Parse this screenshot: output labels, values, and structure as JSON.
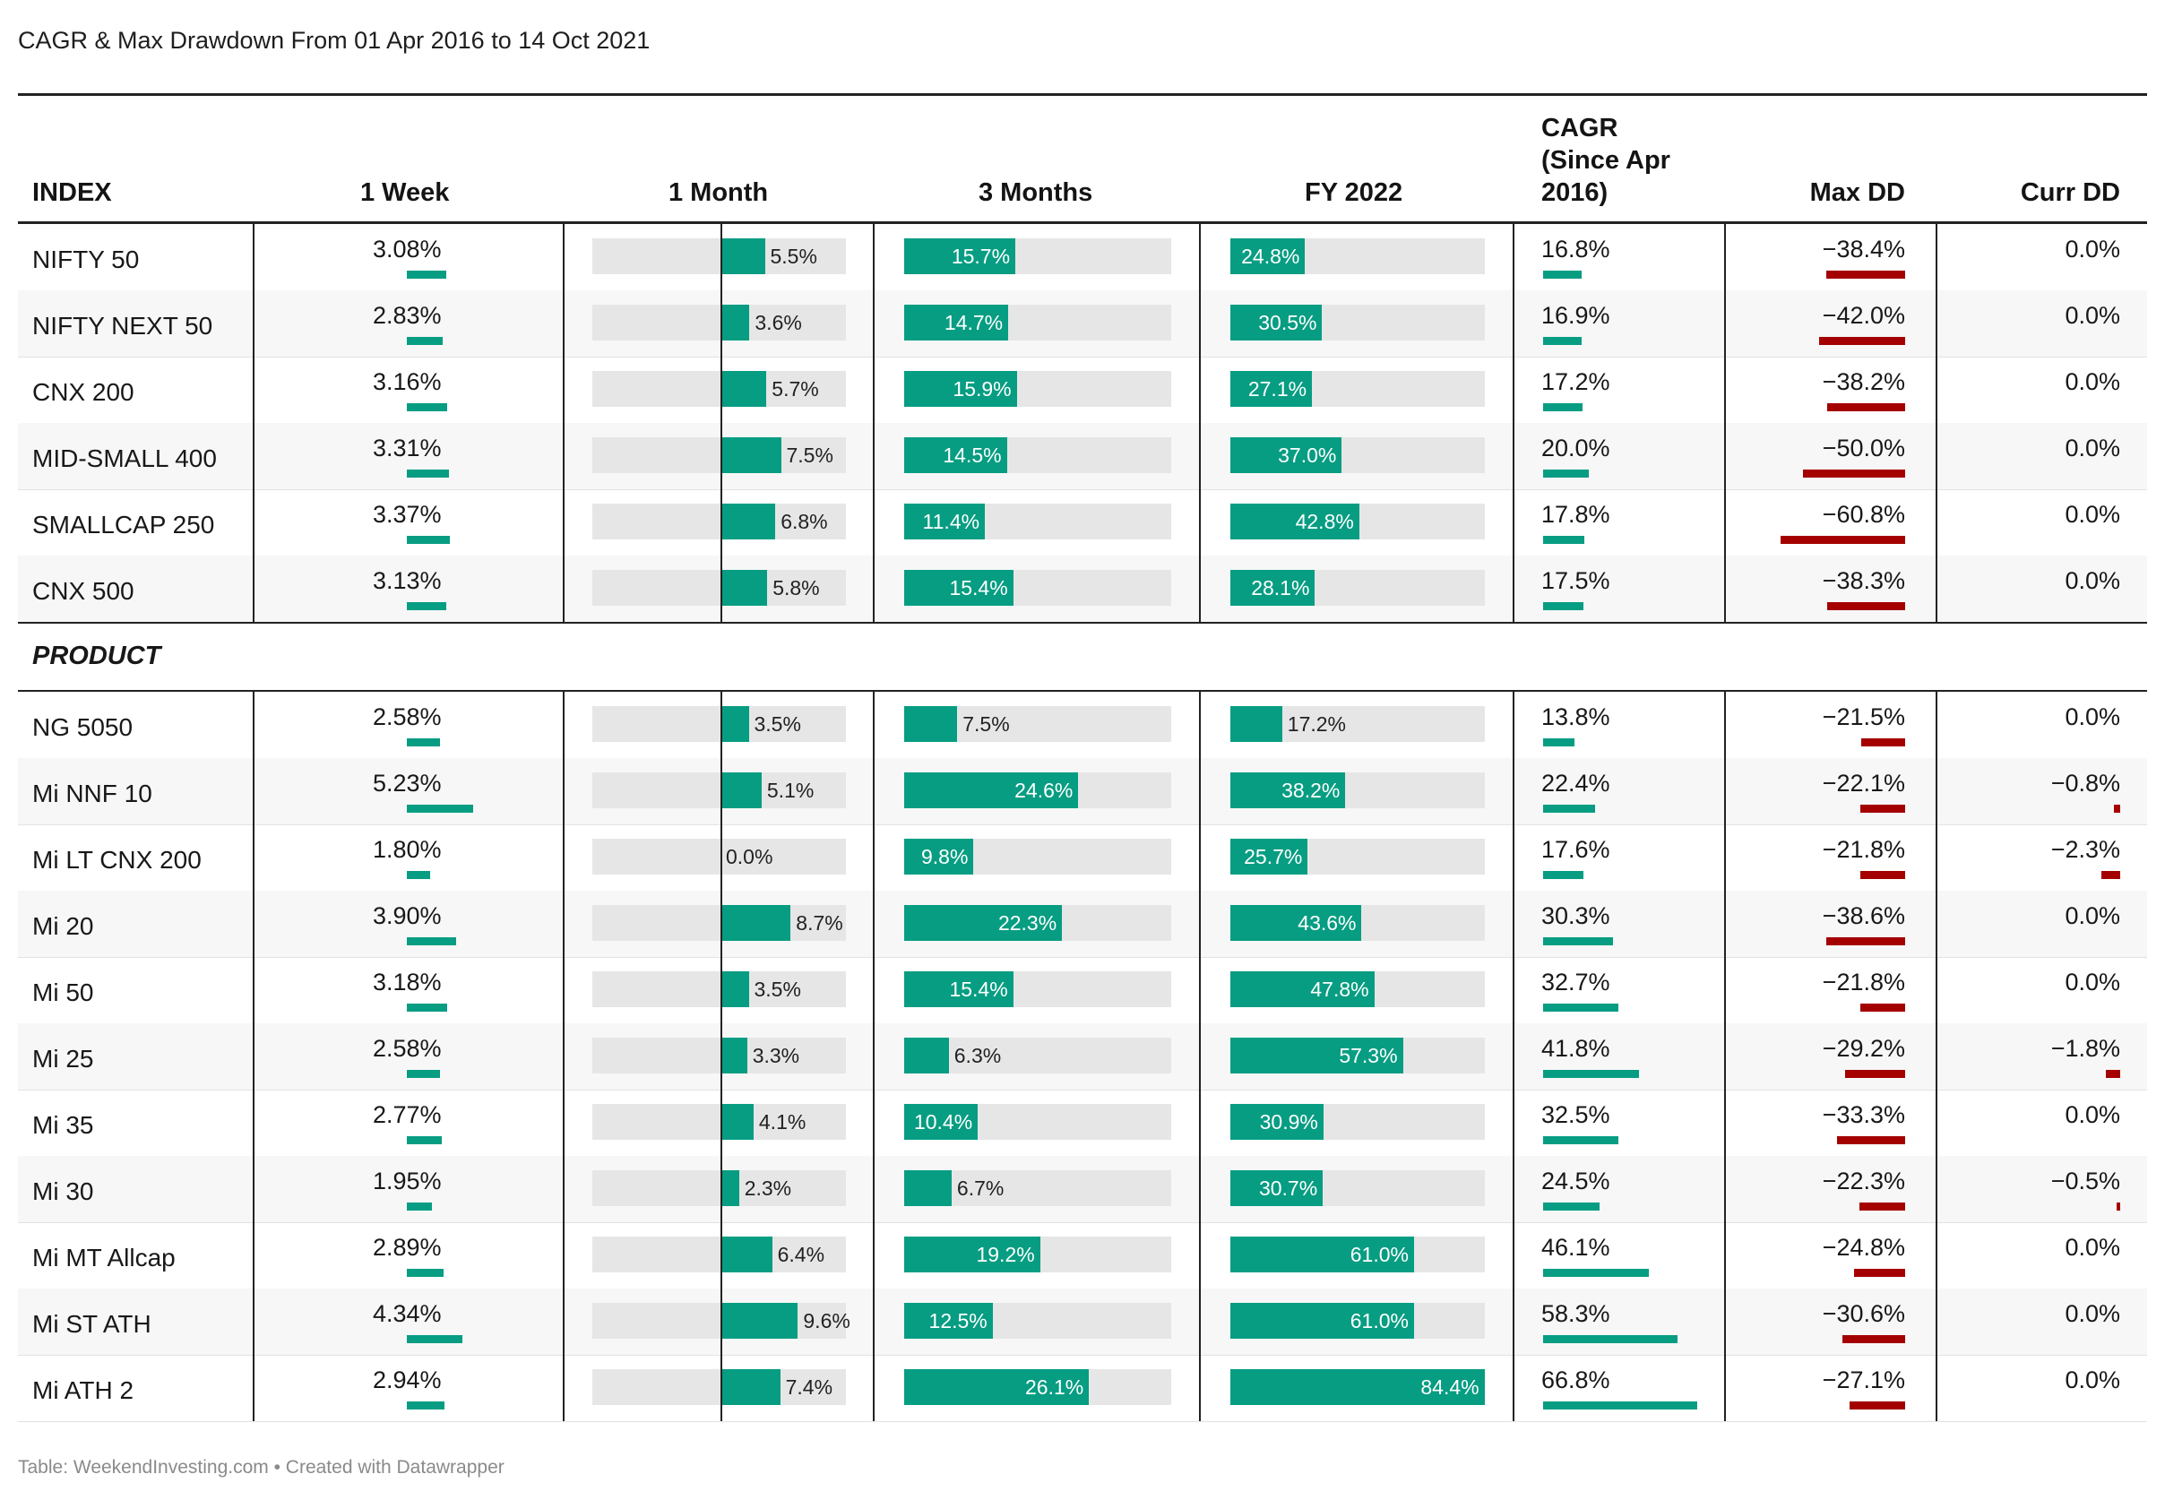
{
  "title": "CAGR & Max Drawdown From 01 Apr 2016 to 14 Oct 2021",
  "footer": "Table: WeekendInvesting.com • Created with Datawrapper",
  "colors": {
    "green": "#079d82",
    "red": "#a40000",
    "track": "#e6e6e6"
  },
  "headers": {
    "index": "INDEX",
    "week": "1 Week",
    "month": "1 Month",
    "months3": "3 Months",
    "fy": "FY 2022",
    "cagr_line1": "CAGR",
    "cagr_line2": "(Since Apr",
    "cagr_line3": "2016)",
    "maxdd": "Max DD",
    "currdd": "Curr DD"
  },
  "section_label": "PRODUCT",
  "chart_data": {
    "type": "table",
    "columns": [
      "INDEX",
      "1 Week",
      "1 Month",
      "3 Months",
      "FY 2022",
      "CAGR (Since Apr 2016)",
      "Max DD",
      "Curr DD"
    ],
    "index_rows": [
      {
        "name": "NIFTY 50",
        "week": "3.08%",
        "week_v": 3.08,
        "month": "5.5%",
        "month_v": 5.5,
        "m3": "15.7%",
        "m3_v": 15.7,
        "fy": "24.8%",
        "fy_v": 24.8,
        "cagr": "16.8%",
        "cagr_v": 16.8,
        "maxdd": "−38.4%",
        "maxdd_v": -38.4,
        "currdd": "0.0%",
        "currdd_v": 0.0
      },
      {
        "name": "NIFTY NEXT 50",
        "week": "2.83%",
        "week_v": 2.83,
        "month": "3.6%",
        "month_v": 3.6,
        "m3": "14.7%",
        "m3_v": 14.7,
        "fy": "30.5%",
        "fy_v": 30.5,
        "cagr": "16.9%",
        "cagr_v": 16.9,
        "maxdd": "−42.0%",
        "maxdd_v": -42.0,
        "currdd": "0.0%",
        "currdd_v": 0.0
      },
      {
        "name": "CNX 200",
        "week": "3.16%",
        "week_v": 3.16,
        "month": "5.7%",
        "month_v": 5.7,
        "m3": "15.9%",
        "m3_v": 15.9,
        "fy": "27.1%",
        "fy_v": 27.1,
        "cagr": "17.2%",
        "cagr_v": 17.2,
        "maxdd": "−38.2%",
        "maxdd_v": -38.2,
        "currdd": "0.0%",
        "currdd_v": 0.0
      },
      {
        "name": "MID-SMALL 400",
        "week": "3.31%",
        "week_v": 3.31,
        "month": "7.5%",
        "month_v": 7.5,
        "m3": "14.5%",
        "m3_v": 14.5,
        "fy": "37.0%",
        "fy_v": 37.0,
        "cagr": "20.0%",
        "cagr_v": 20.0,
        "maxdd": "−50.0%",
        "maxdd_v": -50.0,
        "currdd": "0.0%",
        "currdd_v": 0.0
      },
      {
        "name": "SMALLCAP 250",
        "week": "3.37%",
        "week_v": 3.37,
        "month": "6.8%",
        "month_v": 6.8,
        "m3": "11.4%",
        "m3_v": 11.4,
        "fy": "42.8%",
        "fy_v": 42.8,
        "cagr": "17.8%",
        "cagr_v": 17.8,
        "maxdd": "−60.8%",
        "maxdd_v": -60.8,
        "currdd": "0.0%",
        "currdd_v": 0.0
      },
      {
        "name": "CNX 500",
        "week": "3.13%",
        "week_v": 3.13,
        "month": "5.8%",
        "month_v": 5.8,
        "m3": "15.4%",
        "m3_v": 15.4,
        "fy": "28.1%",
        "fy_v": 28.1,
        "cagr": "17.5%",
        "cagr_v": 17.5,
        "maxdd": "−38.3%",
        "maxdd_v": -38.3,
        "currdd": "0.0%",
        "currdd_v": 0.0
      }
    ],
    "product_rows": [
      {
        "name": "NG 5050",
        "week": "2.58%",
        "week_v": 2.58,
        "month": "3.5%",
        "month_v": 3.5,
        "m3": "7.5%",
        "m3_v": 7.5,
        "fy": "17.2%",
        "fy_v": 17.2,
        "cagr": "13.8%",
        "cagr_v": 13.8,
        "maxdd": "−21.5%",
        "maxdd_v": -21.5,
        "currdd": "0.0%",
        "currdd_v": 0.0
      },
      {
        "name": "Mi NNF 10",
        "week": "5.23%",
        "week_v": 5.23,
        "month": "5.1%",
        "month_v": 5.1,
        "m3": "24.6%",
        "m3_v": 24.6,
        "fy": "38.2%",
        "fy_v": 38.2,
        "cagr": "22.4%",
        "cagr_v": 22.4,
        "maxdd": "−22.1%",
        "maxdd_v": -22.1,
        "currdd": "−0.8%",
        "currdd_v": -0.8
      },
      {
        "name": "Mi LT CNX 200",
        "week": "1.80%",
        "week_v": 1.8,
        "month": "0.0%",
        "month_v": 0.0,
        "m3": "9.8%",
        "m3_v": 9.8,
        "fy": "25.7%",
        "fy_v": 25.7,
        "cagr": "17.6%",
        "cagr_v": 17.6,
        "maxdd": "−21.8%",
        "maxdd_v": -21.8,
        "currdd": "−2.3%",
        "currdd_v": -2.3
      },
      {
        "name": "Mi 20",
        "week": "3.90%",
        "week_v": 3.9,
        "month": "8.7%",
        "month_v": 8.7,
        "m3": "22.3%",
        "m3_v": 22.3,
        "fy": "43.6%",
        "fy_v": 43.6,
        "cagr": "30.3%",
        "cagr_v": 30.3,
        "maxdd": "−38.6%",
        "maxdd_v": -38.6,
        "currdd": "0.0%",
        "currdd_v": 0.0
      },
      {
        "name": "Mi 50",
        "week": "3.18%",
        "week_v": 3.18,
        "month": "3.5%",
        "month_v": 3.5,
        "m3": "15.4%",
        "m3_v": 15.4,
        "fy": "47.8%",
        "fy_v": 47.8,
        "cagr": "32.7%",
        "cagr_v": 32.7,
        "maxdd": "−21.8%",
        "maxdd_v": -21.8,
        "currdd": "0.0%",
        "currdd_v": 0.0
      },
      {
        "name": "Mi 25",
        "week": "2.58%",
        "week_v": 2.58,
        "month": "3.3%",
        "month_v": 3.3,
        "m3": "6.3%",
        "m3_v": 6.3,
        "fy": "57.3%",
        "fy_v": 57.3,
        "cagr": "41.8%",
        "cagr_v": 41.8,
        "maxdd": "−29.2%",
        "maxdd_v": -29.2,
        "currdd": "−1.8%",
        "currdd_v": -1.8
      },
      {
        "name": "Mi 35",
        "week": "2.77%",
        "week_v": 2.77,
        "month": "4.1%",
        "month_v": 4.1,
        "m3": "10.4%",
        "m3_v": 10.4,
        "fy": "30.9%",
        "fy_v": 30.9,
        "cagr": "32.5%",
        "cagr_v": 32.5,
        "maxdd": "−33.3%",
        "maxdd_v": -33.3,
        "currdd": "0.0%",
        "currdd_v": 0.0
      },
      {
        "name": "Mi 30",
        "week": "1.95%",
        "week_v": 1.95,
        "month": "2.3%",
        "month_v": 2.3,
        "m3": "6.7%",
        "m3_v": 6.7,
        "fy": "30.7%",
        "fy_v": 30.7,
        "cagr": "24.5%",
        "cagr_v": 24.5,
        "maxdd": "−22.3%",
        "maxdd_v": -22.3,
        "currdd": "−0.5%",
        "currdd_v": -0.5
      },
      {
        "name": "Mi MT Allcap",
        "week": "2.89%",
        "week_v": 2.89,
        "month": "6.4%",
        "month_v": 6.4,
        "m3": "19.2%",
        "m3_v": 19.2,
        "fy": "61.0%",
        "fy_v": 61.0,
        "cagr": "46.1%",
        "cagr_v": 46.1,
        "maxdd": "−24.8%",
        "maxdd_v": -24.8,
        "currdd": "0.0%",
        "currdd_v": 0.0
      },
      {
        "name": "Mi ST ATH",
        "week": "4.34%",
        "week_v": 4.34,
        "month": "9.6%",
        "month_v": 9.6,
        "m3": "12.5%",
        "m3_v": 12.5,
        "fy": "61.0%",
        "fy_v": 61.0,
        "cagr": "58.3%",
        "cagr_v": 58.3,
        "maxdd": "−30.6%",
        "maxdd_v": -30.6,
        "currdd": "0.0%",
        "currdd_v": 0.0
      },
      {
        "name": "Mi ATH 2",
        "week": "2.94%",
        "week_v": 2.94,
        "month": "7.4%",
        "month_v": 7.4,
        "m3": "26.1%",
        "m3_v": 26.1,
        "fy": "84.4%",
        "fy_v": 84.4,
        "cagr": "66.8%",
        "cagr_v": 66.8,
        "maxdd": "−27.1%",
        "maxdd_v": -27.1,
        "currdd": "0.0%",
        "currdd_v": 0.0
      }
    ]
  }
}
